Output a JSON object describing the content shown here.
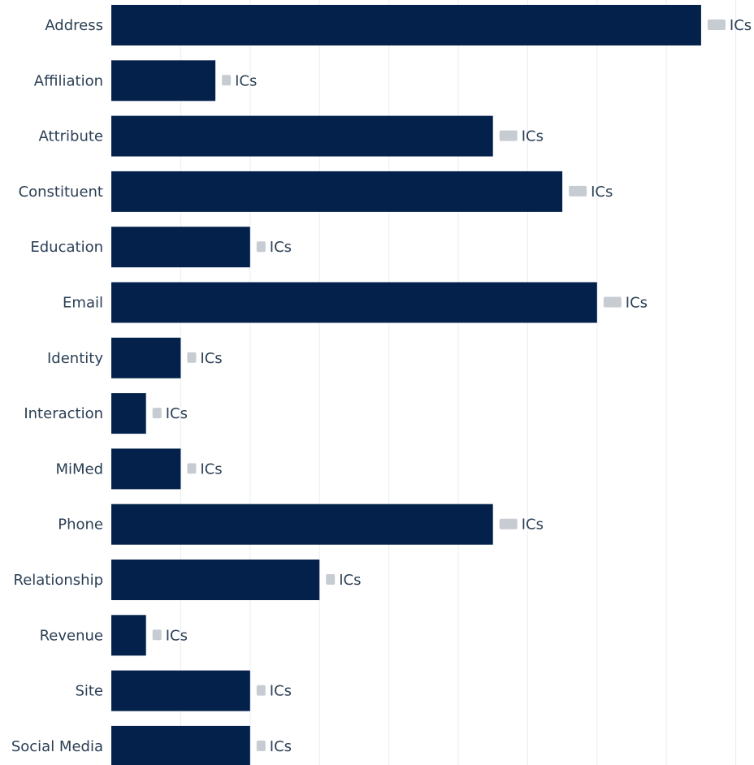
{
  "chart_data": {
    "type": "bar",
    "orientation": "horizontal",
    "bar_color": "#03214b",
    "grid": true,
    "value_suffix": "ICs",
    "value_labels_obscured": true,
    "categories": [
      "Address",
      "Affiliation",
      "Attribute",
      "Constituent",
      "Education",
      "Email",
      "Identity",
      "Interaction",
      "MiMed",
      "Phone",
      "Relationship",
      "Revenue",
      "Site",
      "Social Media"
    ],
    "values": [
      17,
      3,
      11,
      13,
      4,
      14,
      2,
      1,
      2,
      11,
      6,
      1,
      4,
      4
    ],
    "xlim": [
      0,
      18
    ]
  }
}
